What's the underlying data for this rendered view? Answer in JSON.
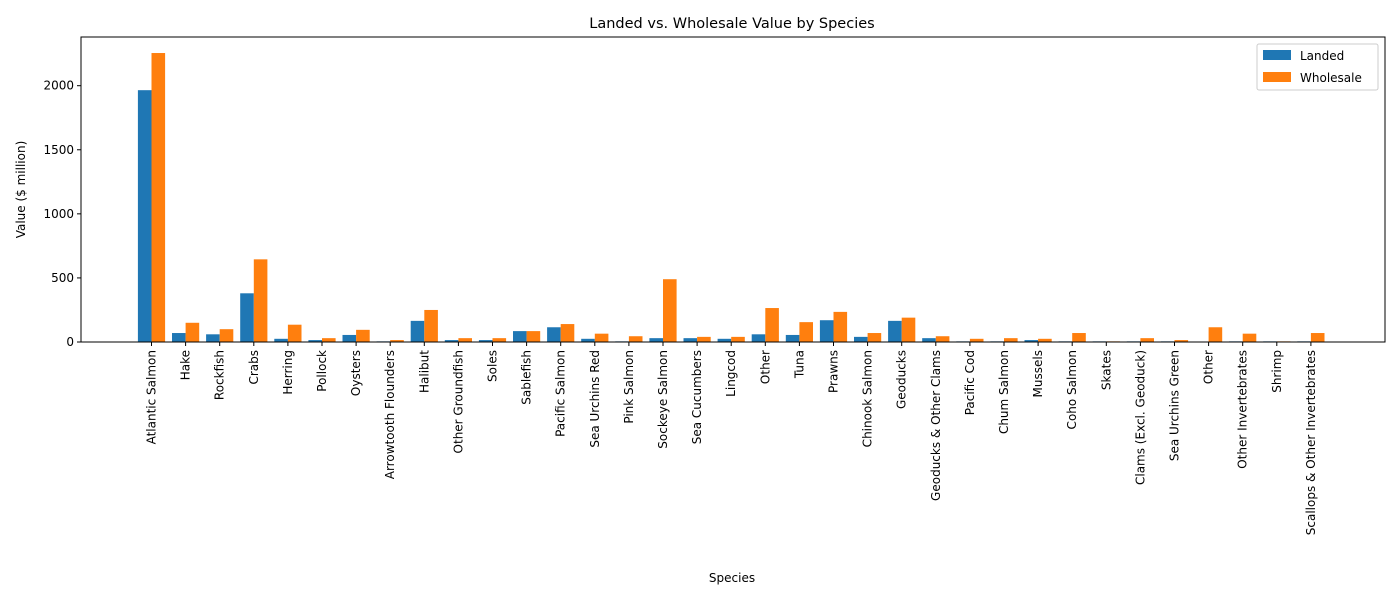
{
  "chart_data": {
    "type": "bar",
    "title": "Landed vs. Wholesale Value by Species",
    "xlabel": "Species",
    "ylabel": "Value ($ million)",
    "ylim": [
      0,
      2380
    ],
    "yticks": [
      0,
      500,
      1000,
      1500,
      2000
    ],
    "grid": false,
    "legend_position": "top-right",
    "categories": [
      "Atlantic Salmon",
      "Hake",
      "Rockfish",
      "Crabs",
      "Herring",
      "Pollock",
      "Oysters",
      "Arrowtooth Flounders",
      "Halibut",
      "Other Groundfish",
      "Soles",
      "Sablefish",
      "Pacific Salmon",
      "Sea Urchins Red",
      "Pink Salmon",
      "Sockeye Salmon",
      "Sea Cucumbers",
      "Lingcod",
      "Other",
      "Tuna",
      "Prawns",
      "Chinook Salmon",
      "Geoducks",
      "Geoducks & Other Clams",
      "Pacific Cod",
      "Chum Salmon",
      "Mussels",
      "Coho Salmon",
      "Skates",
      "Clams (Excl. Geoduck)",
      "Sea Urchins Green",
      "Other",
      "Other Invertebrates",
      "Shrimp",
      "Scallops & Other Invertebrates"
    ],
    "series": [
      {
        "name": "Landed",
        "color": "#1f77b4",
        "values": [
          1965,
          70,
          60,
          380,
          25,
          15,
          55,
          5,
          165,
          15,
          15,
          85,
          115,
          25,
          5,
          30,
          30,
          25,
          60,
          55,
          170,
          40,
          165,
          30,
          5,
          5,
          15,
          5,
          5,
          5,
          5,
          0,
          5,
          5,
          5
        ]
      },
      {
        "name": "Wholesale",
        "color": "#ff7f0e",
        "values": [
          2255,
          150,
          100,
          645,
          135,
          30,
          95,
          15,
          250,
          30,
          30,
          85,
          140,
          65,
          45,
          490,
          40,
          40,
          265,
          155,
          235,
          70,
          190,
          45,
          25,
          30,
          25,
          70,
          5,
          30,
          15,
          115,
          65,
          5,
          70
        ]
      }
    ]
  }
}
